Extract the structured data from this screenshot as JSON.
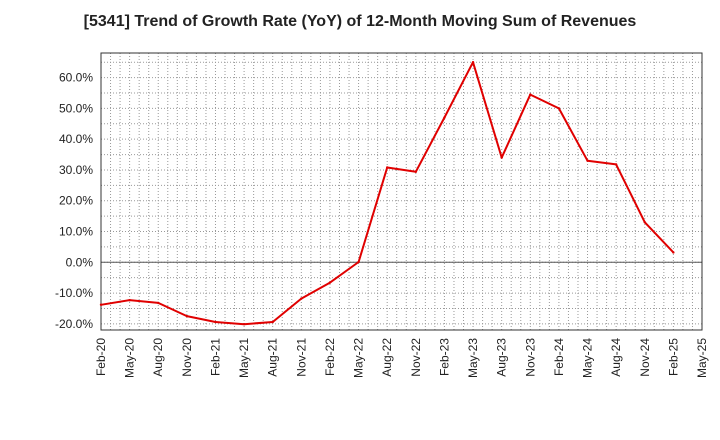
{
  "chart_data": {
    "type": "line",
    "title": "[5341]  Trend of Growth Rate (YoY) of 12-Month Moving Sum of Revenues",
    "xlabel": "",
    "ylabel": "",
    "x_tick_labels": [
      "Feb-20",
      "May-20",
      "Aug-20",
      "Nov-20",
      "Feb-21",
      "May-21",
      "Aug-21",
      "Nov-21",
      "Feb-22",
      "May-22",
      "Aug-22",
      "Nov-22",
      "Feb-23",
      "May-23",
      "Aug-23",
      "Nov-23",
      "Feb-24",
      "May-24",
      "Aug-24",
      "Nov-24",
      "Feb-25",
      "May-25"
    ],
    "y_tick_labels": [
      "-20.0%",
      "-10.0%",
      "0.0%",
      "10.0%",
      "20.0%",
      "30.0%",
      "40.0%",
      "50.0%",
      "60.0%"
    ],
    "y_ticks": [
      -20,
      -10,
      0,
      10,
      20,
      30,
      40,
      50,
      60
    ],
    "ylim": [
      -22,
      68
    ],
    "grid": true,
    "series": [
      {
        "color": "#e00000",
        "x": [
          "Feb-20",
          "May-20",
          "Aug-20",
          "Nov-20",
          "Feb-21",
          "May-21",
          "Aug-21",
          "Nov-21",
          "Feb-22",
          "May-22",
          "Aug-22",
          "Nov-22",
          "Feb-23",
          "May-23",
          "Aug-23",
          "Nov-23",
          "Feb-24",
          "May-24",
          "Aug-24",
          "Nov-24",
          "Feb-25"
        ],
        "values": [
          -13.8,
          -12.3,
          -13.2,
          -17.5,
          -19.4,
          -20.1,
          -19.4,
          -11.8,
          -6.6,
          0.1,
          30.8,
          29.4,
          47.0,
          65.0,
          34.0,
          54.5,
          50.0,
          33.0,
          31.8,
          13.0,
          3.2
        ]
      }
    ]
  }
}
